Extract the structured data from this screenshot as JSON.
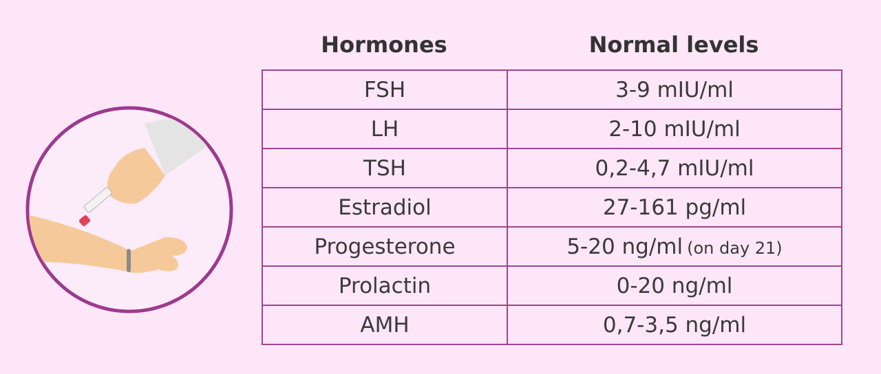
{
  "table": {
    "header": [
      "Hormones",
      "Normal levels"
    ],
    "rows": [
      {
        "hormone": "FSH",
        "level": "3-9 mIU/ml"
      },
      {
        "hormone": "LH",
        "level": "2-10 mIU/ml"
      },
      {
        "hormone": "TSH",
        "level": "0,2-4,7 mIU/ml"
      },
      {
        "hormone": "Estradiol",
        "level": "27-161 pg/ml"
      },
      {
        "hormone": "Progesterone",
        "level": "5-20 ng/ml",
        "note": "(on day 21)"
      },
      {
        "hormone": "Prolactin",
        "level": "0-20 ng/ml"
      },
      {
        "hormone": "AMH",
        "level": "0,7-3,5 ng/ml"
      }
    ]
  }
}
